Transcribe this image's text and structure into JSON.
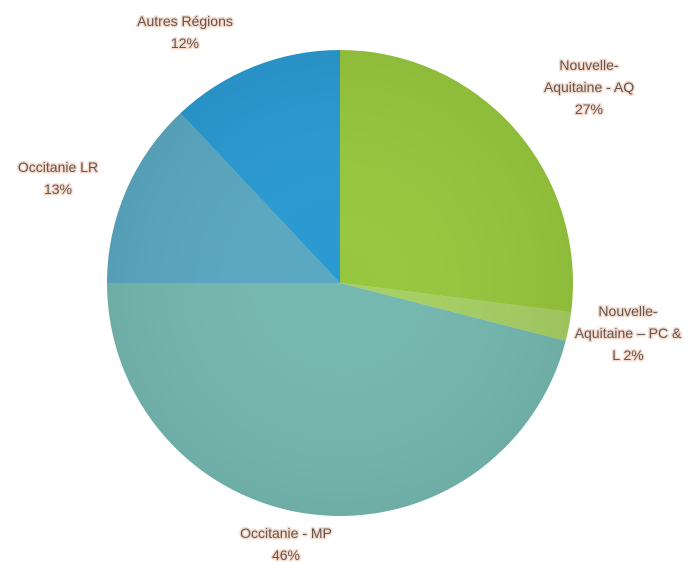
{
  "chart_data": {
    "type": "pie",
    "start_angle_deg": 0,
    "direction": "clockwise",
    "slices": [
      {
        "label_lines": [
          "Nouvelle-",
          "Aquitaine  - AQ",
          "27%"
        ],
        "value": 27,
        "color": "#97c73e"
      },
      {
        "label_lines": [
          "Nouvelle-",
          "Aquitaine – PC &",
          "L 2%"
        ],
        "value": 2,
        "color": "#a6cf64"
      },
      {
        "label_lines": [
          "Occitanie - MP",
          "46%"
        ],
        "value": 46,
        "color": "#74b8b0"
      },
      {
        "label_lines": [
          "Occitanie LR",
          "13%"
        ],
        "value": 13,
        "color": "#5aa8c1"
      },
      {
        "label_lines": [
          "Autres Régions",
          "12%"
        ],
        "value": 12,
        "color": "#2a9ad2"
      }
    ]
  }
}
